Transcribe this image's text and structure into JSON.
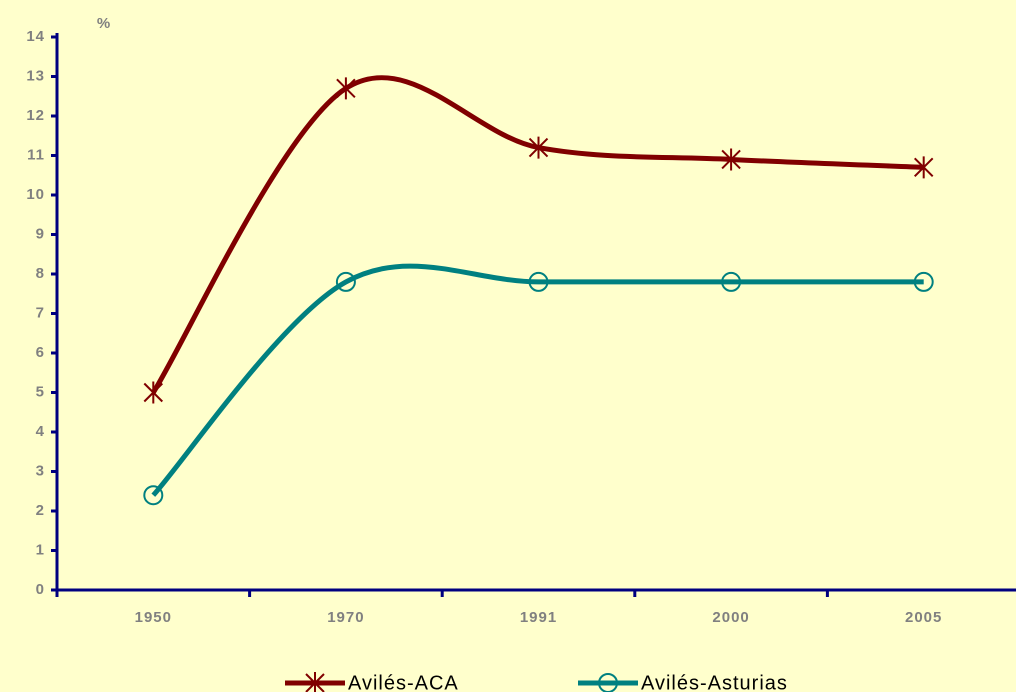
{
  "chart_data": {
    "type": "line",
    "y_label": "%",
    "categories": [
      "1950",
      "1970",
      "1991",
      "2000",
      "2005"
    ],
    "series": [
      {
        "name": "Avilés-ACA",
        "color": "#800000",
        "marker": "star",
        "values": [
          5.0,
          12.7,
          11.2,
          10.9,
          10.7
        ]
      },
      {
        "name": "Avilés-Asturias",
        "color": "#008080",
        "marker": "circle",
        "values": [
          2.4,
          7.8,
          7.8,
          7.8,
          7.8
        ]
      }
    ],
    "ylim": [
      0,
      14
    ],
    "yticks": [
      0,
      1,
      2,
      3,
      4,
      5,
      6,
      7,
      8,
      9,
      10,
      11,
      12,
      13,
      14
    ],
    "smooth": true,
    "axis_color": "#000080",
    "background": "#ffffcc",
    "legend": "bottom"
  }
}
